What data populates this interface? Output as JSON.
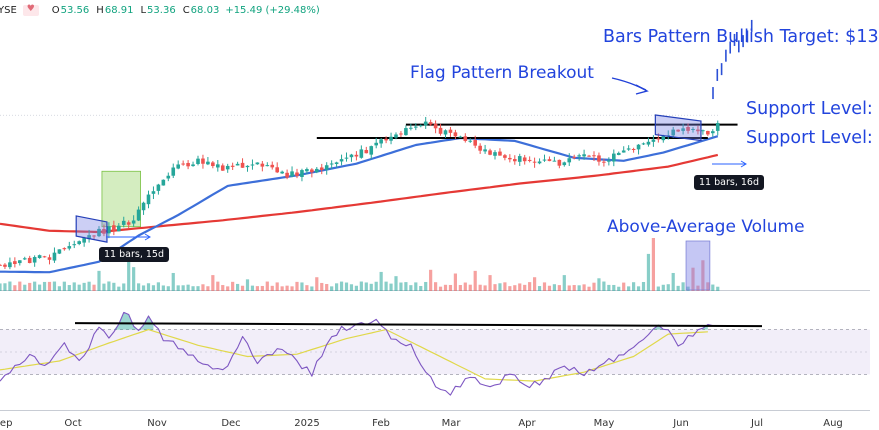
{
  "ticker_bar": {
    "symbol": "YSE",
    "open_label": "O",
    "open": "53.56",
    "high_label": "H",
    "high": "68.91",
    "low_label": "L",
    "low": "53.36",
    "close_label": "C",
    "close": "68.03",
    "change": "+15.49 (+29.48%)"
  },
  "annotations": {
    "target": "Bars Pattern Bullish Target: $13",
    "flag": "Flag Pattern Breakout",
    "support_upper": "Support Level:",
    "support_lower": "Support Level:",
    "volume": "Above-Average Volume",
    "badge_left": "11 bars, 15d",
    "badge_right": "11 bars, 16d"
  },
  "colors": {
    "up": "#26a69a",
    "down": "#ef5350",
    "ma_fast": "#3d6fd9",
    "ma_slow": "#e53935",
    "rsi": "#7e57c2",
    "rsi_signal": "#e8e36a",
    "annotation": "#2244dd"
  },
  "chart_data": {
    "type": "candlestick",
    "title": "",
    "x_tick_labels": [
      "Sep",
      "Oct",
      "Nov",
      "Dec",
      "2025",
      "Feb",
      "Mar",
      "Apr",
      "May",
      "Jun",
      "Jul",
      "Aug"
    ],
    "price_panel": {
      "ylim": [
        27,
        76
      ],
      "pivots": [
        {
          "i": 0,
          "p": 31.0
        },
        {
          "i": 5,
          "p": 31.6
        },
        {
          "i": 10,
          "p": 32.4
        },
        {
          "i": 16,
          "p": 35.5
        },
        {
          "i": 21,
          "p": 36.8
        },
        {
          "i": 27,
          "p": 38.5
        },
        {
          "i": 31,
          "p": 44.0
        },
        {
          "i": 35,
          "p": 47.5
        },
        {
          "i": 40,
          "p": 48.8
        },
        {
          "i": 45,
          "p": 47.6
        },
        {
          "i": 52,
          "p": 48.2
        },
        {
          "i": 57,
          "p": 46.4
        },
        {
          "i": 62,
          "p": 47.0
        },
        {
          "i": 69,
          "p": 48.6
        },
        {
          "i": 76,
          "p": 51.5
        },
        {
          "i": 82,
          "p": 54.0
        },
        {
          "i": 86,
          "p": 55.4
        },
        {
          "i": 89,
          "p": 54.0
        },
        {
          "i": 93,
          "p": 52.5
        },
        {
          "i": 98,
          "p": 50.6
        },
        {
          "i": 104,
          "p": 49.3
        },
        {
          "i": 108,
          "p": 48.6
        },
        {
          "i": 113,
          "p": 48.3
        },
        {
          "i": 118,
          "p": 49.5
        },
        {
          "i": 121,
          "p": 48.8
        },
        {
          "i": 126,
          "p": 50.2
        },
        {
          "i": 131,
          "p": 52.2
        },
        {
          "i": 136,
          "p": 54.0
        },
        {
          "i": 140,
          "p": 54.3
        },
        {
          "i": 143,
          "p": 53.6
        },
        {
          "i": 145,
          "p": 55.0
        },
        {
          "i": 146,
          "p": 58.0
        },
        {
          "i": 149,
          "p": 60.8
        },
        {
          "i": 153,
          "p": 62.8
        }
      ],
      "ma50": [
        {
          "i": 0,
          "p": 29.8
        },
        {
          "i": 10,
          "p": 29.7
        },
        {
          "i": 20,
          "p": 31.5
        },
        {
          "i": 28,
          "p": 36.0
        },
        {
          "i": 36,
          "p": 39.5
        },
        {
          "i": 46,
          "p": 44.5
        },
        {
          "i": 60,
          "p": 46.3
        },
        {
          "i": 72,
          "p": 48.3
        },
        {
          "i": 84,
          "p": 51.5
        },
        {
          "i": 93,
          "p": 52.7
        },
        {
          "i": 104,
          "p": 52.2
        },
        {
          "i": 116,
          "p": 49.3
        },
        {
          "i": 126,
          "p": 48.8
        },
        {
          "i": 134,
          "p": 50.2
        },
        {
          "i": 145,
          "p": 53.0
        }
      ],
      "ma200": [
        {
          "i": 0,
          "p": 38.0
        },
        {
          "i": 10,
          "p": 36.8
        },
        {
          "i": 20,
          "p": 36.6
        },
        {
          "i": 30,
          "p": 37.4
        },
        {
          "i": 45,
          "p": 38.6
        },
        {
          "i": 60,
          "p": 40.0
        },
        {
          "i": 75,
          "p": 41.6
        },
        {
          "i": 90,
          "p": 43.3
        },
        {
          "i": 105,
          "p": 44.9
        },
        {
          "i": 120,
          "p": 46.2
        },
        {
          "i": 135,
          "p": 47.8
        },
        {
          "i": 145,
          "p": 49.8
        }
      ],
      "support_levels": [
        55.0,
        52.7
      ],
      "projection": [
        {
          "i": 145,
          "p": 60.4
        },
        {
          "i": 146,
          "p": 63.5
        },
        {
          "i": 147,
          "p": 64.5
        },
        {
          "i": 148,
          "p": 66.8
        },
        {
          "i": 149,
          "p": 68.2
        },
        {
          "i": 150,
          "p": 69.5
        },
        {
          "i": 151,
          "p": 68.4
        },
        {
          "i": 152,
          "p": 69.3
        },
        {
          "i": 153,
          "p": 70.1
        },
        {
          "i": 154,
          "p": 71.9
        }
      ]
    },
    "volume_panel": {
      "ylim": [
        0,
        100
      ],
      "baseline": 8,
      "spikes": [
        {
          "i": 20,
          "v": 38
        },
        {
          "i": 26,
          "v": 62
        },
        {
          "i": 27,
          "v": 45
        },
        {
          "i": 35,
          "v": 34
        },
        {
          "i": 43,
          "v": 30
        },
        {
          "i": 50,
          "v": 22
        },
        {
          "i": 64,
          "v": 26
        },
        {
          "i": 77,
          "v": 36
        },
        {
          "i": 80,
          "v": 28
        },
        {
          "i": 87,
          "v": 40
        },
        {
          "i": 92,
          "v": 33
        },
        {
          "i": 96,
          "v": 38
        },
        {
          "i": 99,
          "v": 30
        },
        {
          "i": 108,
          "v": 26
        },
        {
          "i": 114,
          "v": 30
        },
        {
          "i": 121,
          "v": 24
        },
        {
          "i": 131,
          "v": 70
        },
        {
          "i": 132,
          "v": 100
        },
        {
          "i": 136,
          "v": 34
        },
        {
          "i": 140,
          "v": 44
        },
        {
          "i": 142,
          "v": 58
        }
      ]
    },
    "rsi_panel": {
      "ylim": [
        0,
        100
      ],
      "bands": [
        70,
        30
      ],
      "overbought_line": 74,
      "pivots": [
        {
          "i": 0,
          "p": 24
        },
        {
          "i": 6,
          "p": 48
        },
        {
          "i": 9,
          "p": 36
        },
        {
          "i": 13,
          "p": 58
        },
        {
          "i": 16,
          "p": 40
        },
        {
          "i": 20,
          "p": 72
        },
        {
          "i": 22,
          "p": 60
        },
        {
          "i": 25,
          "p": 86
        },
        {
          "i": 28,
          "p": 70
        },
        {
          "i": 30,
          "p": 84
        },
        {
          "i": 33,
          "p": 60
        },
        {
          "i": 37,
          "p": 54
        },
        {
          "i": 40,
          "p": 42
        },
        {
          "i": 45,
          "p": 32
        },
        {
          "i": 49,
          "p": 62
        },
        {
          "i": 52,
          "p": 40
        },
        {
          "i": 56,
          "p": 52
        },
        {
          "i": 60,
          "p": 42
        },
        {
          "i": 63,
          "p": 30
        },
        {
          "i": 66,
          "p": 58
        },
        {
          "i": 69,
          "p": 70
        },
        {
          "i": 72,
          "p": 74
        },
        {
          "i": 76,
          "p": 80
        },
        {
          "i": 79,
          "p": 64
        },
        {
          "i": 83,
          "p": 56
        },
        {
          "i": 85,
          "p": 40
        },
        {
          "i": 88,
          "p": 20
        },
        {
          "i": 91,
          "p": 12
        },
        {
          "i": 95,
          "p": 30
        },
        {
          "i": 99,
          "p": 18
        },
        {
          "i": 103,
          "p": 30
        },
        {
          "i": 107,
          "p": 20
        },
        {
          "i": 110,
          "p": 24
        },
        {
          "i": 114,
          "p": 38
        },
        {
          "i": 118,
          "p": 30
        },
        {
          "i": 123,
          "p": 42
        },
        {
          "i": 128,
          "p": 52
        },
        {
          "i": 133,
          "p": 76
        },
        {
          "i": 135,
          "p": 68
        },
        {
          "i": 137,
          "p": 56
        },
        {
          "i": 140,
          "p": 66
        },
        {
          "i": 143,
          "p": 74
        }
      ],
      "signal": [
        {
          "i": 0,
          "p": 34
        },
        {
          "i": 12,
          "p": 42
        },
        {
          "i": 22,
          "p": 58
        },
        {
          "i": 30,
          "p": 70
        },
        {
          "i": 40,
          "p": 56
        },
        {
          "i": 50,
          "p": 46
        },
        {
          "i": 60,
          "p": 48
        },
        {
          "i": 70,
          "p": 62
        },
        {
          "i": 78,
          "p": 70
        },
        {
          "i": 88,
          "p": 48
        },
        {
          "i": 98,
          "p": 26
        },
        {
          "i": 108,
          "p": 24
        },
        {
          "i": 118,
          "p": 32
        },
        {
          "i": 128,
          "p": 46
        },
        {
          "i": 135,
          "p": 66
        },
        {
          "i": 143,
          "p": 68
        }
      ]
    },
    "flag_boxes": [
      {
        "i0": 16,
        "i1": 21,
        "p_top": 39.0,
        "p_bottom": 35.2
      },
      {
        "i0": 133,
        "i1": 141,
        "p_top": 56.3,
        "p_bottom": 52.6
      }
    ],
    "pole_box": {
      "i0": 21,
      "i1": 28,
      "p_top": 47.0,
      "p_bottom": 37.5
    }
  }
}
